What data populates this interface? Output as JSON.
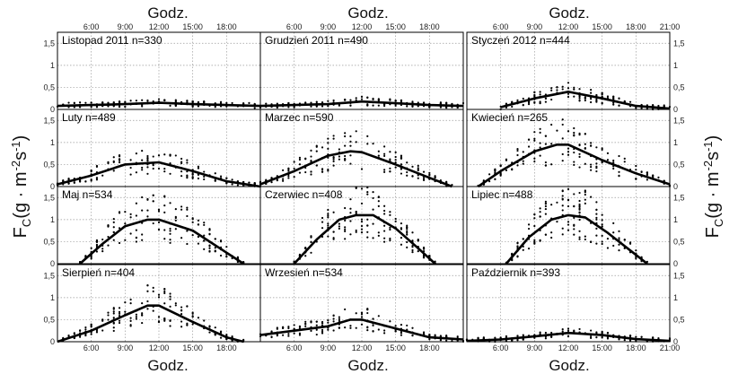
{
  "labels": {
    "x_axis_label": "Godz.",
    "y_axis_label_main": "F",
    "y_axis_label_sub": "C",
    "y_axis_label_rest": "(g · m",
    "y_axis_label_exp": "-2",
    "y_axis_label_s": "s",
    "y_axis_label_exp2": "-1",
    "y_axis_label_close": ")"
  },
  "colors": {
    "points": "#000000",
    "curve": "#000000",
    "grid": "#9a9a9a",
    "frame": "#000000"
  },
  "chart_data": {
    "type": "scatter",
    "layout": "4x3 grid of panels",
    "xlabel": "Godz.",
    "ylabel": "F_C (g · m^-2 s^-1)",
    "x_ticks": [
      "6:00",
      "9:00",
      "12:00",
      "15:00",
      "18:00",
      "21:00"
    ],
    "y_ticks": [
      "0",
      "0,5",
      "1",
      "1,5"
    ],
    "ylim": [
      0,
      1.75
    ],
    "xlim_hours": [
      3,
      21
    ],
    "grid": true,
    "panels": [
      {
        "title": "Listopad 2011 n=330",
        "curve_x": [
          3,
          6,
          9,
          12,
          15,
          18,
          21
        ],
        "curve_y": [
          0.08,
          0.1,
          0.12,
          0.15,
          0.12,
          0.1,
          0.08
        ],
        "scatter_max": 0.3
      },
      {
        "title": "Grudzień 2011 n=490",
        "curve_x": [
          3,
          6,
          9,
          12,
          15,
          18,
          21
        ],
        "curve_y": [
          0.08,
          0.1,
          0.12,
          0.18,
          0.14,
          0.1,
          0.08
        ],
        "scatter_max": 0.35
      },
      {
        "title": "Styczeń 2012 n=444",
        "curve_x": [
          6,
          9,
          12,
          15,
          18,
          21
        ],
        "curve_y": [
          0.05,
          0.25,
          0.4,
          0.25,
          0.08,
          0.02
        ],
        "scatter_max": 0.9
      },
      {
        "title": "Luty n=489",
        "curve_x": [
          3,
          6,
          9,
          12,
          15,
          18,
          21
        ],
        "curve_y": [
          0.05,
          0.25,
          0.5,
          0.55,
          0.35,
          0.12,
          0.0
        ],
        "scatter_max": 1.5
      },
      {
        "title": "Marzec n=590",
        "curve_x": [
          3,
          6,
          9,
          11,
          12,
          15,
          18,
          20
        ],
        "curve_y": [
          0.05,
          0.35,
          0.7,
          0.8,
          0.78,
          0.5,
          0.2,
          0.0
        ],
        "scatter_max": 1.6
      },
      {
        "title": "Kwiecień n=265",
        "curve_x": [
          4,
          6,
          9,
          11,
          12,
          15,
          18,
          21
        ],
        "curve_y": [
          0.0,
          0.35,
          0.8,
          0.95,
          0.95,
          0.6,
          0.3,
          0.05
        ],
        "scatter_max": 1.6
      },
      {
        "title": "Maj n=534",
        "curve_x": [
          5,
          7,
          9,
          11,
          12,
          15,
          18,
          19.5
        ],
        "curve_y": [
          0.0,
          0.45,
          0.85,
          1.0,
          1.0,
          0.75,
          0.25,
          0.0
        ],
        "scatter_max": 1.75
      },
      {
        "title": "Czerwiec n=408",
        "curve_x": [
          6,
          8,
          10,
          11.5,
          13,
          15,
          17,
          18.5
        ],
        "curve_y": [
          0.0,
          0.55,
          1.0,
          1.1,
          1.1,
          0.8,
          0.35,
          0.0
        ],
        "scatter_max": 1.75
      },
      {
        "title": "Lipiec n=488",
        "curve_x": [
          6.5,
          8.5,
          10.5,
          12,
          13.5,
          15.5,
          17.5,
          19
        ],
        "curve_y": [
          0.0,
          0.6,
          1.0,
          1.1,
          1.05,
          0.7,
          0.3,
          0.0
        ],
        "scatter_max": 1.75
      },
      {
        "title": "Sierpień n=404",
        "curve_x": [
          3,
          6,
          9,
          11,
          12,
          15,
          18,
          19.5
        ],
        "curve_y": [
          0.0,
          0.25,
          0.6,
          0.82,
          0.82,
          0.45,
          0.1,
          0.0
        ],
        "scatter_max": 1.5
      },
      {
        "title": "Wrzesień n=534",
        "curve_x": [
          3,
          6,
          9,
          11,
          12,
          15,
          18,
          21
        ],
        "curve_y": [
          0.15,
          0.25,
          0.35,
          0.5,
          0.5,
          0.3,
          0.1,
          0.05
        ],
        "scatter_max": 1.1
      },
      {
        "title": "Październik n=393",
        "curve_x": [
          3,
          6,
          9,
          12,
          15,
          18,
          21
        ],
        "curve_y": [
          0.02,
          0.05,
          0.12,
          0.2,
          0.15,
          0.06,
          0.02
        ],
        "scatter_max": 0.8
      }
    ]
  }
}
